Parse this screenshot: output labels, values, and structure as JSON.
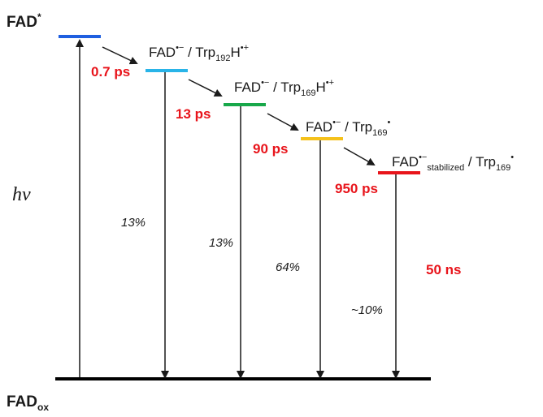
{
  "states": {
    "excited": {
      "main": "FAD",
      "sup": "*"
    },
    "ground": {
      "main": "FAD",
      "sub": "ox"
    },
    "s1": {
      "a": "FAD",
      "a_sup": "•−",
      "sep": " / Trp",
      "sub": "192",
      "b": "H",
      "b_sup": "•+"
    },
    "s2": {
      "a": "FAD",
      "a_sup": "•−",
      "sep": " / Trp",
      "sub": "169",
      "b": "H",
      "b_sup": "•+"
    },
    "s3": {
      "a": "FAD",
      "a_sup": "•−",
      "sep": " / Trp",
      "sub": "169",
      "b_sup": "•"
    },
    "s4": {
      "a": "FAD",
      "a_sup": "•−",
      "a_sub": "stabilized",
      "sep": " / Trp",
      "sub": "169",
      "b_sup": "•"
    }
  },
  "excitation": "hν",
  "times": [
    "0.7 ps",
    "13 ps",
    "90 ps",
    "950 ps",
    "50 ns"
  ],
  "yields": [
    "13%",
    "13%",
    "64%",
    "~10%"
  ],
  "colors": {
    "level_0": "#1f5fe0",
    "level_1": "#29b4e8",
    "level_2": "#18a84a",
    "level_3": "#f5c11a",
    "level_4": "#e8141b",
    "time_text": "#e8141b"
  }
}
